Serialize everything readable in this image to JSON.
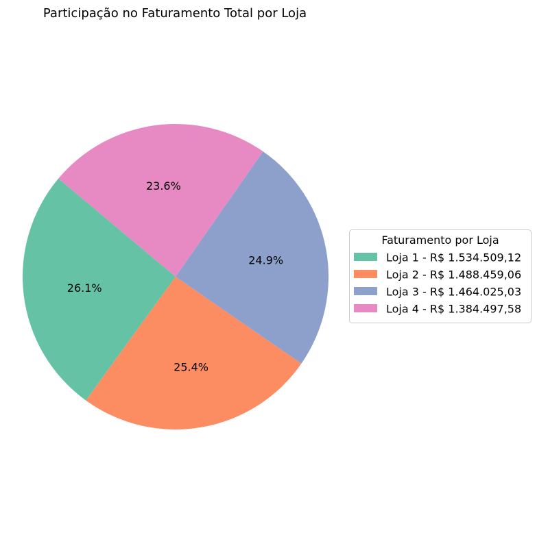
{
  "chart_data": {
    "type": "pie",
    "title": "Participação no Faturamento Total por Loja",
    "legend_title": "Faturamento por Loja",
    "legend_position": "center-right",
    "start_angle_deg": 140,
    "direction": "counterclockwise",
    "slices": [
      {
        "label": "Loja 1 - R$ 1.534.509,12",
        "value": 1534509.12,
        "pct_label": "26.1%",
        "color": "#66c2a5"
      },
      {
        "label": "Loja 2 - R$ 1.488.459,06",
        "value": 1488459.06,
        "pct_label": "25.4%",
        "color": "#fc8d62"
      },
      {
        "label": "Loja 3 - R$ 1.464.025,03",
        "value": 1464025.03,
        "pct_label": "24.9%",
        "color": "#8da0cb"
      },
      {
        "label": "Loja 4 - R$ 1.384.497,58",
        "value": 1384497.58,
        "pct_label": "23.6%",
        "color": "#e78ac3"
      }
    ]
  }
}
